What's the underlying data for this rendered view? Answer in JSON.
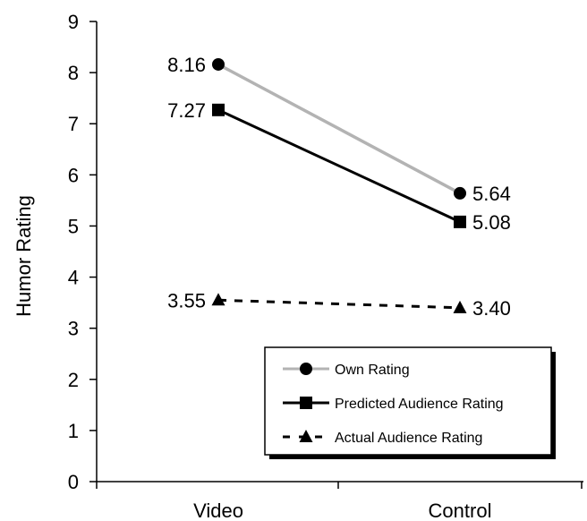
{
  "chart_data": {
    "type": "line",
    "title": "",
    "xlabel": "",
    "ylabel": "Humor Rating",
    "categories": [
      "Video",
      "Control"
    ],
    "ylim": [
      0,
      9
    ],
    "yticks": [
      "0",
      "1",
      "2",
      "3",
      "4",
      "5",
      "6",
      "7",
      "8",
      "9"
    ],
    "grid": false,
    "legend_position": "bottom-right",
    "series": [
      {
        "name": "Own Rating",
        "values": [
          8.16,
          5.64
        ],
        "labels": [
          "8.16",
          "5.64"
        ],
        "marker": "circle",
        "line": "solid",
        "color": "#b3b3b3",
        "marker_color": "#000000"
      },
      {
        "name": "Predicted Audience Rating",
        "values": [
          7.27,
          5.08
        ],
        "labels": [
          "7.27",
          "5.08"
        ],
        "marker": "square",
        "line": "solid",
        "color": "#000000",
        "marker_color": "#000000"
      },
      {
        "name": "Actual Audience Rating",
        "values": [
          3.55,
          3.4
        ],
        "labels": [
          "3.55",
          "3.40"
        ],
        "marker": "triangle",
        "line": "dashed",
        "color": "#000000",
        "marker_color": "#000000"
      }
    ]
  }
}
